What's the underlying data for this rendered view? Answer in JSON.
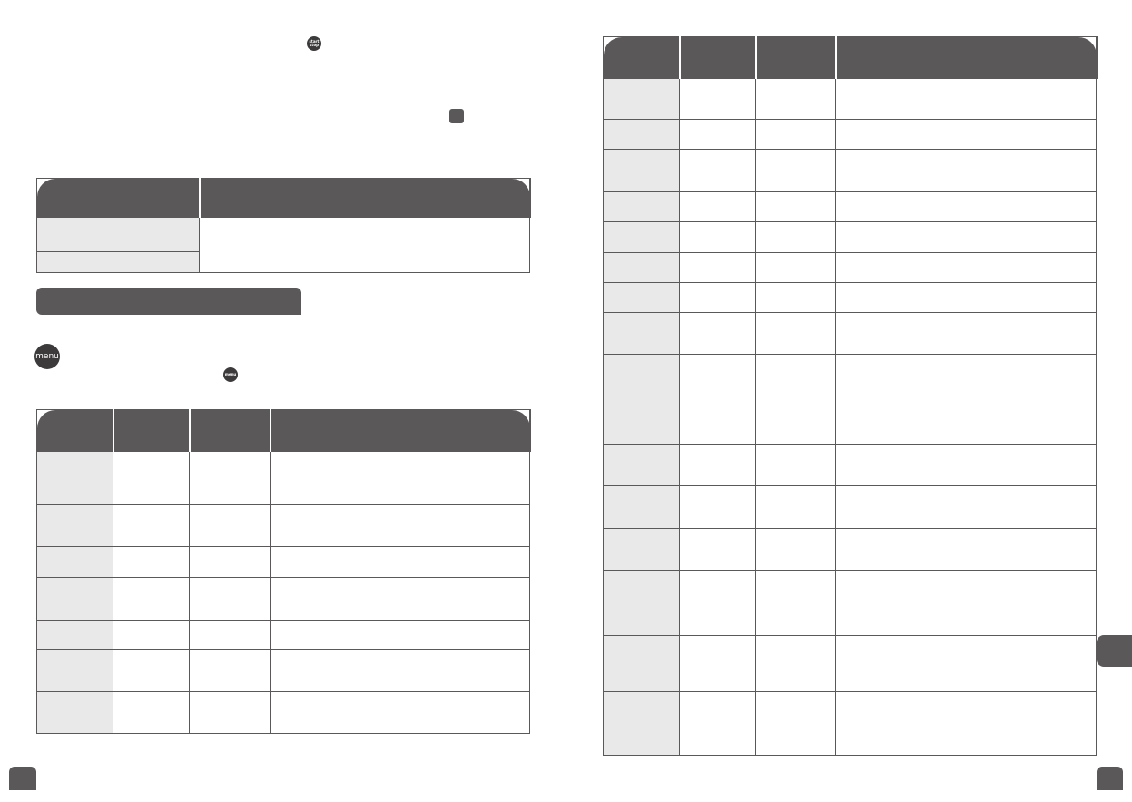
{
  "icons": {
    "start_stop_label": "start stop",
    "menu_label": "menu"
  },
  "colors": {
    "header": "#5a5858",
    "first_column_fill": "#e9e9e9",
    "icon": "#3c3a3a"
  }
}
